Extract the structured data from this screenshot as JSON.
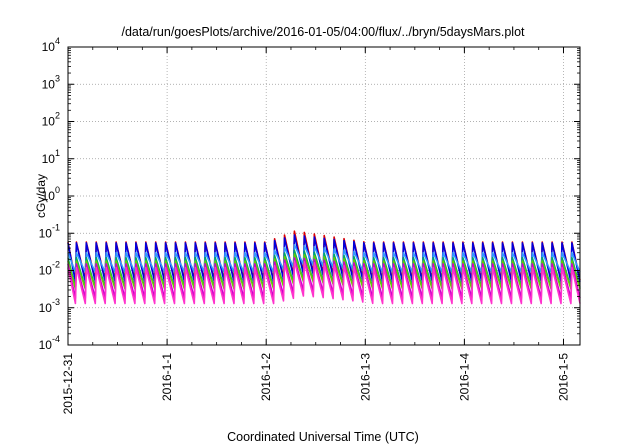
{
  "chart_data": {
    "type": "line",
    "title": "/data/run/goesPlots/archive/2016-01-05/04:00/flux/../bryn/5daysMars.plot",
    "xlabel": "Coordinated Universal Time (UTC)",
    "ylabel": "cGy/day",
    "yscale": "log",
    "ylim": [
      0.0001,
      10000
    ],
    "xlim": [
      "2015-12-31",
      "2016-01-05 04:00"
    ],
    "grid": true,
    "legend": "none",
    "x_ticks": [
      "2015-12-31",
      "2016-1-1",
      "2016-1-2",
      "2016-1-3",
      "2016-1-4",
      "2016-1-5"
    ],
    "y_ticks": [
      {
        "base": "10",
        "exp": "-4"
      },
      {
        "base": "10",
        "exp": "-3"
      },
      {
        "base": "10",
        "exp": "-2"
      },
      {
        "base": "10",
        "exp": "-1"
      },
      {
        "base": "10",
        "exp": "0"
      },
      {
        "base": "10",
        "exp": "1"
      },
      {
        "base": "10",
        "exp": "2"
      },
      {
        "base": "10",
        "exp": "3"
      },
      {
        "base": "10",
        "exp": "4"
      }
    ],
    "sawtooth_period_hours": 2.4,
    "series": [
      {
        "color": "#e00000",
        "peak": 0.058,
        "trough": 0.0055,
        "peak_enhanced": 0.115
      },
      {
        "color": "#0000dd",
        "peak": 0.055,
        "trough": 0.005,
        "peak_enhanced": 0.09
      },
      {
        "color": "#3399ff",
        "peak": 0.03,
        "trough": 0.009,
        "peak_enhanced": 0.05
      },
      {
        "color": "#00aa66",
        "peak": 0.022,
        "trough": 0.0035,
        "peak_enhanced": 0.035
      },
      {
        "color": "#66cc00",
        "peak": 0.018,
        "trough": 0.0032,
        "peak_enhanced": 0.028
      },
      {
        "color": "#cc00cc",
        "peak": 0.015,
        "trough": 0.0018,
        "peak_enhanced": 0.022
      },
      {
        "color": "#ff33cc",
        "peak": 0.012,
        "trough": 0.0013,
        "peak_enhanced": 0.018
      }
    ]
  }
}
